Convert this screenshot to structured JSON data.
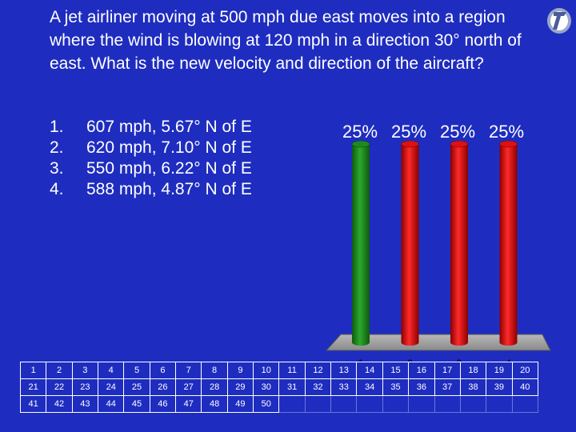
{
  "slide": {
    "question": "A jet airliner moving at 500 mph due east moves into a region where the wind is blowing at 120 mph in a direction 30° north of east. What is the new velocity and direction of the aircraft?",
    "logo_icon": "turningpoint-logo-icon",
    "answers": [
      {
        "num": "1.",
        "text": "607 mph, 5.67° N of E"
      },
      {
        "num": "2.",
        "text": "620 mph, 7.10° N of E"
      },
      {
        "num": "3.",
        "text": "550 mph, 6.22° N of E"
      },
      {
        "num": "4.",
        "text": "588 mph, 4.87° N of E"
      }
    ]
  },
  "chart_data": {
    "type": "bar",
    "categories": [
      "1",
      "2",
      "3",
      "4"
    ],
    "values": [
      25,
      25,
      25,
      25
    ],
    "value_labels": [
      "25%",
      "25%",
      "25%",
      "25%"
    ],
    "ylim": [
      0,
      25
    ],
    "colors": [
      "#1e8a1e",
      "#e01010",
      "#e01010",
      "#e01010"
    ],
    "grid": false
  },
  "response_grid": {
    "rows": [
      [
        "1",
        "2",
        "3",
        "4",
        "5",
        "6",
        "7",
        "8",
        "9",
        "10",
        "11",
        "12",
        "13",
        "14",
        "15",
        "16",
        "17",
        "18",
        "19",
        "20"
      ],
      [
        "21",
        "22",
        "23",
        "24",
        "25",
        "26",
        "27",
        "28",
        "29",
        "30",
        "31",
        "32",
        "33",
        "34",
        "35",
        "36",
        "37",
        "38",
        "39",
        "40"
      ],
      [
        "41",
        "42",
        "43",
        "44",
        "45",
        "46",
        "47",
        "48",
        "49",
        "50",
        "",
        "",
        "",
        "",
        "",
        "",
        "",
        "",
        "",
        ""
      ]
    ]
  },
  "colors": {
    "background": "#1e2dbf",
    "text": "#ffffff",
    "correct": "#1e8a1e",
    "incorrect": "#e01010"
  }
}
